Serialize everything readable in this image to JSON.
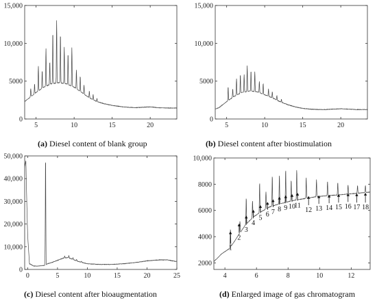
{
  "chart_data": [
    {
      "type": "line",
      "panel": "a",
      "caption_letter": "(a)",
      "caption": " Diesel content of blank group",
      "xlim": [
        3.5,
        23.5
      ],
      "ylim": [
        0,
        15000
      ],
      "xticks": [
        5,
        10,
        15,
        20
      ],
      "yticks": [
        0,
        5000,
        10000,
        15000
      ],
      "ytick_labels": [
        "0",
        "5000",
        "10,000",
        "15,000"
      ],
      "baseline": [
        [
          3.5,
          2300
        ],
        [
          4,
          2700
        ],
        [
          5,
          3500
        ],
        [
          6,
          4200
        ],
        [
          7,
          4650
        ],
        [
          8,
          4800
        ],
        [
          9,
          4650
        ],
        [
          10,
          4200
        ],
        [
          11,
          3500
        ],
        [
          12,
          2800
        ],
        [
          13,
          2300
        ],
        [
          14,
          2000
        ],
        [
          15,
          1800
        ],
        [
          16,
          1650
        ],
        [
          17,
          1550
        ],
        [
          18,
          1500
        ],
        [
          19,
          1550
        ],
        [
          20,
          1600
        ],
        [
          21,
          1500
        ],
        [
          22,
          1450
        ],
        [
          23.5,
          1450
        ]
      ],
      "peaks": [
        [
          4.3,
          1100
        ],
        [
          4.8,
          1300
        ],
        [
          5.3,
          3300
        ],
        [
          5.8,
          2300
        ],
        [
          6.3,
          5000
        ],
        [
          6.8,
          3000
        ],
        [
          7.2,
          6800
        ],
        [
          7.7,
          8300
        ],
        [
          8.2,
          6500
        ],
        [
          8.7,
          4800
        ],
        [
          9.2,
          4100
        ],
        [
          9.7,
          5100
        ],
        [
          10.3,
          2500
        ],
        [
          10.8,
          2000
        ],
        [
          11.3,
          1200
        ],
        [
          12,
          900
        ],
        [
          12.5,
          700
        ],
        [
          13,
          400
        ]
      ]
    },
    {
      "type": "line",
      "panel": "b",
      "caption_letter": "(b)",
      "caption": " Diesel content after biostimulation",
      "xlim": [
        3.5,
        23.5
      ],
      "ylim": [
        0,
        15000
      ],
      "xticks": [
        5,
        10,
        15,
        20
      ],
      "yticks": [
        0,
        5000,
        10000,
        15000
      ],
      "ytick_labels": [
        "0",
        "5000",
        "10,000",
        "15,000"
      ],
      "baseline": [
        [
          3.5,
          1300
        ],
        [
          4,
          1500
        ],
        [
          5,
          2300
        ],
        [
          6,
          3000
        ],
        [
          7,
          3500
        ],
        [
          8,
          3700
        ],
        [
          9,
          3600
        ],
        [
          10,
          3200
        ],
        [
          11,
          2800
        ],
        [
          12,
          2300
        ],
        [
          13,
          1900
        ],
        [
          14,
          1600
        ],
        [
          15,
          1400
        ],
        [
          16,
          1300
        ],
        [
          17,
          1250
        ],
        [
          18,
          1250
        ],
        [
          19,
          1300
        ],
        [
          20,
          1350
        ],
        [
          21,
          1300
        ],
        [
          22,
          1250
        ],
        [
          23.5,
          1250
        ]
      ],
      "peaks": [
        [
          5.2,
          1800
        ],
        [
          5.8,
          1100
        ],
        [
          6.3,
          2200
        ],
        [
          6.8,
          2500
        ],
        [
          7.3,
          2300
        ],
        [
          7.7,
          3400
        ],
        [
          8.2,
          2700
        ],
        [
          8.7,
          2600
        ],
        [
          9.3,
          1500
        ],
        [
          9.8,
          1400
        ],
        [
          10.5,
          1000
        ],
        [
          11,
          800
        ],
        [
          11.6,
          600
        ],
        [
          12.2,
          400
        ]
      ]
    },
    {
      "type": "line",
      "panel": "c",
      "caption_letter": "(c)",
      "caption": " Diesel content after bioaugmentation",
      "xlim": [
        -0.5,
        25
      ],
      "ylim": [
        0,
        50000
      ],
      "xticks": [
        0,
        5,
        10,
        15,
        20,
        25
      ],
      "yticks": [
        0,
        10000,
        20000,
        30000,
        40000,
        50000
      ],
      "ytick_labels": [
        "0",
        "10,000",
        "20,000",
        "30,000",
        "40,000",
        "50,000"
      ],
      "baseline": [
        [
          -0.5,
          45000
        ],
        [
          -0.3,
          48000
        ],
        [
          -0.15,
          30000
        ],
        [
          0,
          15000
        ],
        [
          0.3,
          2500
        ],
        [
          1,
          1500
        ],
        [
          2,
          1500
        ],
        [
          2.8,
          1800
        ],
        [
          3.05,
          1800
        ],
        [
          3.3,
          2500
        ],
        [
          4,
          3000
        ],
        [
          5,
          4000
        ],
        [
          6,
          5000
        ],
        [
          6.8,
          5200
        ],
        [
          7.5,
          4500
        ],
        [
          8.5,
          3500
        ],
        [
          10,
          2500
        ],
        [
          12,
          2200
        ],
        [
          14,
          2200
        ],
        [
          16,
          2500
        ],
        [
          18,
          3000
        ],
        [
          20,
          3800
        ],
        [
          22,
          4200
        ],
        [
          23.5,
          4200
        ],
        [
          24.2,
          3800
        ],
        [
          25,
          3500
        ]
      ],
      "peaks": [
        [
          3.0,
          48000
        ],
        [
          6.2,
          800
        ],
        [
          6.9,
          1000
        ],
        [
          7.6,
          700
        ],
        [
          8.2,
          600
        ],
        [
          9.0,
          400
        ]
      ]
    },
    {
      "type": "line",
      "panel": "d",
      "caption_letter": "(d)",
      "caption": " Enlarged image of gas chromatogram",
      "xlim": [
        3.3,
        13.2
      ],
      "ylim": [
        1500,
        10000
      ],
      "xticks": [
        4,
        6,
        8,
        10,
        12
      ],
      "yticks": [
        2000,
        4000,
        6000,
        8000,
        10000
      ],
      "ytick_labels": [
        "2000",
        "4000",
        "6000",
        "8000",
        "10,000"
      ],
      "baseline": [
        [
          3.3,
          2100
        ],
        [
          3.8,
          2700
        ],
        [
          4.3,
          3100
        ],
        [
          4.8,
          4000
        ],
        [
          5.3,
          4900
        ],
        [
          5.8,
          5500
        ],
        [
          6.3,
          5900
        ],
        [
          6.8,
          6250
        ],
        [
          7.3,
          6450
        ],
        [
          7.8,
          6600
        ],
        [
          8.3,
          6750
        ],
        [
          8.8,
          6850
        ],
        [
          9.3,
          6950
        ],
        [
          9.8,
          7050
        ],
        [
          10.3,
          7100
        ],
        [
          10.8,
          7150
        ],
        [
          11.3,
          7200
        ],
        [
          11.8,
          7250
        ],
        [
          12.3,
          7300
        ],
        [
          13.2,
          7400
        ]
      ],
      "peaks": [
        [
          4.35,
          1400
        ],
        [
          4.95,
          900
        ],
        [
          5.35,
          2000
        ],
        [
          5.75,
          1300
        ],
        [
          6.2,
          2300
        ],
        [
          6.6,
          1300
        ],
        [
          7.0,
          2300
        ],
        [
          7.45,
          2200
        ],
        [
          7.85,
          2500
        ],
        [
          8.2,
          1600
        ],
        [
          8.55,
          2300
        ],
        [
          9.15,
          1600
        ],
        [
          9.8,
          1300
        ],
        [
          10.5,
          1100
        ],
        [
          11.15,
          950
        ],
        [
          11.8,
          700
        ],
        [
          12.4,
          600
        ],
        [
          12.9,
          550
        ]
      ],
      "arrows": [
        {
          "label": "1",
          "x": 4.35,
          "y0": 3500,
          "y1": 4400
        },
        {
          "label": "2",
          "x": 4.9,
          "y0": 4300,
          "y1": 5000
        },
        {
          "label": "3",
          "x": 5.35,
          "y0": 4900,
          "y1": 5600
        },
        {
          "label": "4",
          "x": 5.8,
          "y0": 5400,
          "y1": 6050
        },
        {
          "label": "5",
          "x": 6.25,
          "y0": 5800,
          "y1": 6400
        },
        {
          "label": "6",
          "x": 6.7,
          "y0": 6050,
          "y1": 6650
        },
        {
          "label": "7",
          "x": 7.05,
          "y0": 6250,
          "y1": 6850
        },
        {
          "label": "8",
          "x": 7.45,
          "y0": 6450,
          "y1": 7050
        },
        {
          "label": "9",
          "x": 7.85,
          "y0": 6550,
          "y1": 7150
        },
        {
          "label": "10",
          "x": 8.25,
          "y0": 6650,
          "y1": 7250
        },
        {
          "label": "11",
          "x": 8.6,
          "y0": 6750,
          "y1": 7350
        },
        {
          "label": "12",
          "x": 9.3,
          "y0": 6400,
          "y1": 7100
        },
        {
          "label": "13",
          "x": 9.95,
          "y0": 6500,
          "y1": 7150
        },
        {
          "label": "14",
          "x": 10.6,
          "y0": 6550,
          "y1": 7200
        },
        {
          "label": "15",
          "x": 11.2,
          "y0": 6600,
          "y1": 7250
        },
        {
          "label": "16",
          "x": 11.8,
          "y0": 6650,
          "y1": 7300
        },
        {
          "label": "17",
          "x": 12.35,
          "y0": 6600,
          "y1": 7300
        },
        {
          "label": "18",
          "x": 12.9,
          "y0": 6600,
          "y1": 7350
        }
      ]
    }
  ]
}
